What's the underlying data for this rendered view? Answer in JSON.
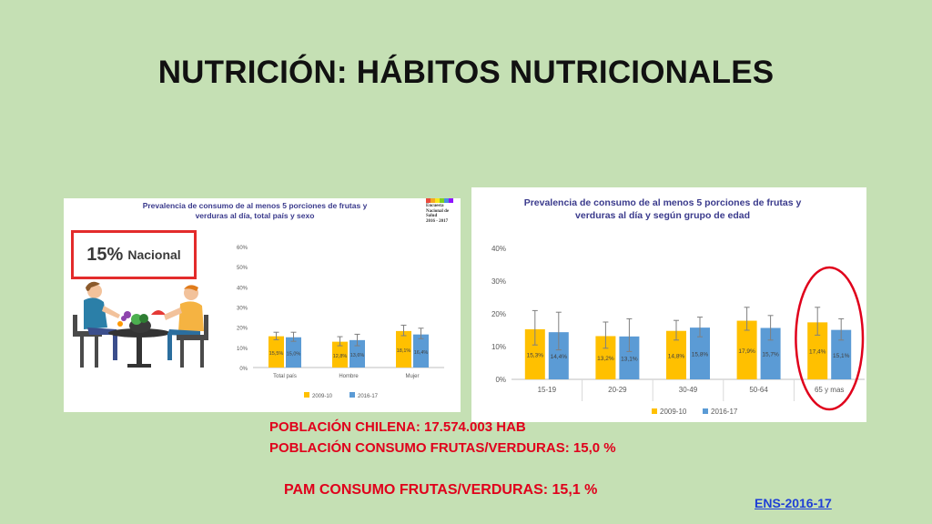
{
  "slide": {
    "title": "NUTRICIÓN: HÁBITOS NUTRICIONALES",
    "lines": [
      "POBLACIÓN CHILENA: 17.574.003 HAB",
      "POBLACIÓN CONSUMO FRUTAS/VERDURAS: 15,0 %",
      "PAM CONSUMO FRUTAS/VERDURAS: 15,1 %"
    ],
    "link_text": "ENS-2016-17"
  },
  "left_panel": {
    "nacional_pct": "15%",
    "nacional_label": "Nacional",
    "logo_text": [
      "Encuesta",
      "Nacional de",
      "Salud",
      "2016 - 2017"
    ],
    "colors": {
      "highlight_box": "#e32b2b"
    }
  },
  "chart_data": [
    {
      "type": "bar",
      "title": "Prevalencia de consumo de al menos 5 porciones de frutas y verduras al día, total país y sexo",
      "categories": [
        "Total país",
        "Hombre",
        "Mujer"
      ],
      "series": [
        {
          "name": "2009-10",
          "color": "#ffc000",
          "values": [
            15.5,
            12.8,
            18.1
          ],
          "labels": [
            "15,5%",
            "12,8%",
            "18,1%"
          ],
          "err_low": [
            13.8,
            10.8,
            15.8
          ],
          "err_high": [
            17.5,
            15.3,
            21.0
          ]
        },
        {
          "name": "2016-17",
          "color": "#5b9bd5",
          "values": [
            15.0,
            13.6,
            16.4
          ],
          "labels": [
            "15,0%",
            "13,6%",
            "16,4%"
          ],
          "err_low": [
            13.0,
            10.8,
            14.3
          ],
          "err_high": [
            17.5,
            16.5,
            19.5
          ]
        }
      ],
      "yticks": [
        "0%",
        "10%",
        "20%",
        "30%",
        "40%",
        "50%",
        "60%"
      ],
      "ylim": [
        0,
        60
      ],
      "legend": "bottom",
      "grid": false
    },
    {
      "type": "bar",
      "title": "Prevalencia de consumo de al menos 5 porciones de frutas y verduras al día y según grupo de edad",
      "categories": [
        "15-19",
        "20-29",
        "30-49",
        "50-64",
        "65 y mas"
      ],
      "series": [
        {
          "name": "2009-10",
          "color": "#ffc000",
          "values": [
            15.3,
            13.2,
            14.8,
            17.9,
            17.4
          ],
          "labels": [
            "15,3%",
            "13,2%",
            "14,8%",
            "17,9%",
            "17,4%"
          ],
          "err_low": [
            10.5,
            9.5,
            12.0,
            15.0,
            13.5
          ],
          "err_high": [
            21.0,
            17.5,
            18.0,
            22.0,
            22.0
          ]
        },
        {
          "name": "2016-17",
          "color": "#5b9bd5",
          "values": [
            14.4,
            13.1,
            15.8,
            15.7,
            15.1
          ],
          "labels": [
            "14,4%",
            "13,1%",
            "15,8%",
            "15,7%",
            "15,1%"
          ],
          "err_low": [
            9.0,
            8.5,
            13.0,
            12.0,
            12.0
          ],
          "err_high": [
            20.5,
            18.5,
            19.0,
            19.5,
            18.5
          ]
        }
      ],
      "yticks": [
        "0%",
        "10%",
        "20%",
        "30%",
        "40%"
      ],
      "ylim": [
        0,
        40
      ],
      "legend": "bottom",
      "grid": false,
      "highlighted_category": "65 y mas",
      "highlight_color": "#e0001b"
    }
  ]
}
